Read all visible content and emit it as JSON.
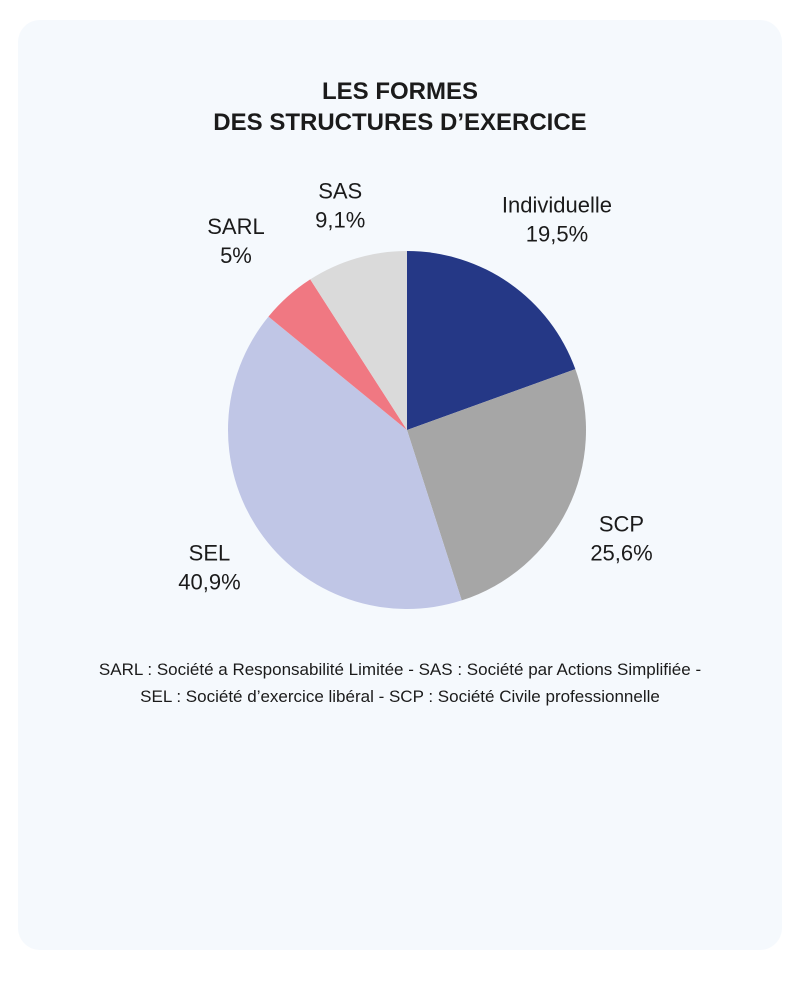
{
  "chart_data": {
    "type": "pie",
    "title_lines": [
      "LES FORMES",
      "DES STRUCTURES D’EXERCICE"
    ],
    "slices": [
      {
        "label": "Individuelle",
        "value_text": "19,5%",
        "value": 19.5,
        "color": "#253886"
      },
      {
        "label": "SCP",
        "value_text": "25,6%",
        "value": 25.6,
        "color": "#a6a6a6"
      },
      {
        "label": "SEL",
        "value_text": "40,9%",
        "value": 40.9,
        "color": "#c0c6e6"
      },
      {
        "label": "SARL",
        "value_text": "5%",
        "value": 5,
        "color": "#f07882"
      },
      {
        "label": "SAS",
        "value_text": "9,1%",
        "value": 9.1,
        "color": "#dadada"
      }
    ],
    "start": "top, clockwise",
    "legend": "none"
  },
  "footnote": "SARL : Société a Responsabilité Limitée - SAS : Société par Actions Simplifiée - SEL : Société d’exercice libéral - SCP : Société Civile professionnelle"
}
